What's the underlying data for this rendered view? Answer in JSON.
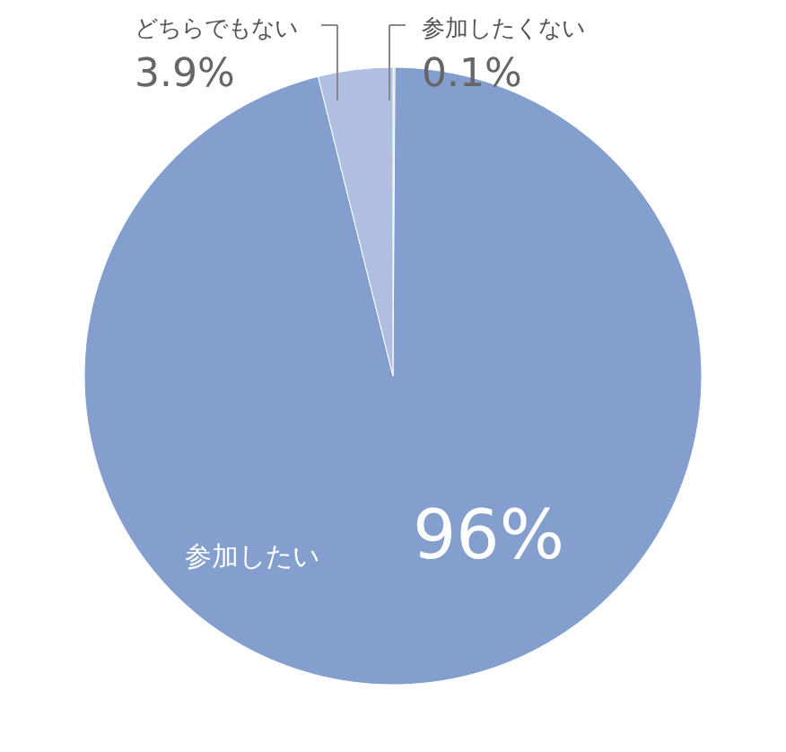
{
  "chart_data": {
    "type": "pie",
    "categories": [
      "参加したくない",
      "参加したい",
      "どちらでもない"
    ],
    "values": [
      0.1,
      96,
      3.9
    ],
    "colors": [
      "#a9d18e",
      "#849fcd",
      "#b0bfe1"
    ],
    "value_labels": [
      "0.1%",
      "96%",
      "3.9%"
    ],
    "legend": false
  }
}
